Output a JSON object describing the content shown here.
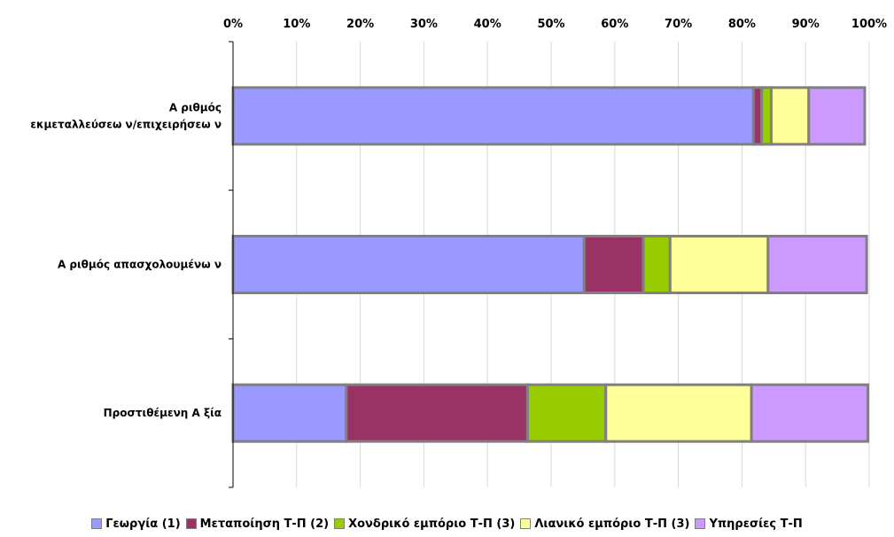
{
  "chart_data": {
    "type": "bar",
    "orientation": "horizontal",
    "stacked": "percent",
    "categories": [
      "Α ριθμός εκμεταλλεύσεω ν/επιχειρήσεω ν",
      "Α ριθμός απασχολουμένω ν",
      "Προστιθέμενη Α ξία"
    ],
    "category_label_lines": [
      [
        "Α ριθμός",
        "εκμεταλλεύσεω ν/επιχειρήσεω ν"
      ],
      [
        "Α ριθμός απασχολουμένω ν"
      ],
      [
        "Προστιθέμενη Α ξία"
      ]
    ],
    "series": [
      {
        "name": "Γεωργία (1)",
        "color": "#9999ff",
        "values": [
          81.8,
          55.2,
          17.8
        ]
      },
      {
        "name": "Μεταποίηση Τ-Π (2)",
        "color": "#993366",
        "values": [
          1.3,
          9.3,
          28.5
        ]
      },
      {
        "name": "Χονδρικό εμπόριο Τ-Π (3)",
        "color": "#99cc00",
        "values": [
          1.5,
          4.2,
          12.3
        ]
      },
      {
        "name": "Λιανικό εμπόριο Τ-Π (3)",
        "color": "#ffff99",
        "values": [
          5.9,
          15.4,
          22.9
        ]
      },
      {
        "name": "Υπηρεσίες Τ-Π",
        "color": "#cc99ff",
        "values": [
          8.8,
          15.5,
          18.3
        ]
      }
    ],
    "xlim": [
      0,
      100
    ],
    "xticks": [
      "0%",
      "10%",
      "20%",
      "30%",
      "40%",
      "50%",
      "60%",
      "70%",
      "80%",
      "90%",
      "100%"
    ],
    "x_axis_position": "top",
    "grid": true,
    "legend_position": "bottom"
  }
}
